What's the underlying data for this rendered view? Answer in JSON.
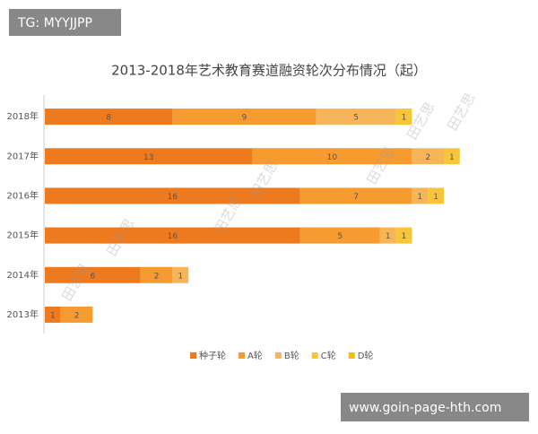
{
  "chart_data": {
    "type": "stacked-bar-horizontal",
    "title": "2013-2018年艺术教育赛道融资轮次分布情况（起）",
    "categories": [
      "2018年",
      "2017年",
      "2016年",
      "2015年",
      "2014年",
      "2013年"
    ],
    "series": [
      {
        "name": "种子轮",
        "color": "#ee7a1f",
        "values": [
          8,
          13,
          16,
          16,
          6,
          1
        ]
      },
      {
        "name": "A轮",
        "color": "#f59b2f",
        "values": [
          9,
          10,
          7,
          5,
          2,
          2
        ]
      },
      {
        "name": "B轮",
        "color": "#f7b55a",
        "values": [
          5,
          2,
          1,
          1,
          1,
          null
        ]
      },
      {
        "name": "C轮",
        "color": "#f8c43a",
        "values": [
          1,
          1,
          1,
          1,
          null,
          null
        ]
      },
      {
        "name": "D轮",
        "color": "#f3c000",
        "values": [
          null,
          null,
          null,
          null,
          null,
          null
        ]
      }
    ],
    "xlim": [
      0,
      30
    ],
    "legend": "bottom",
    "watermark": "田艺思",
    "badge_top": "TG: MYYJJPP",
    "badge_bottom": "www.goin-page-hth.com"
  }
}
